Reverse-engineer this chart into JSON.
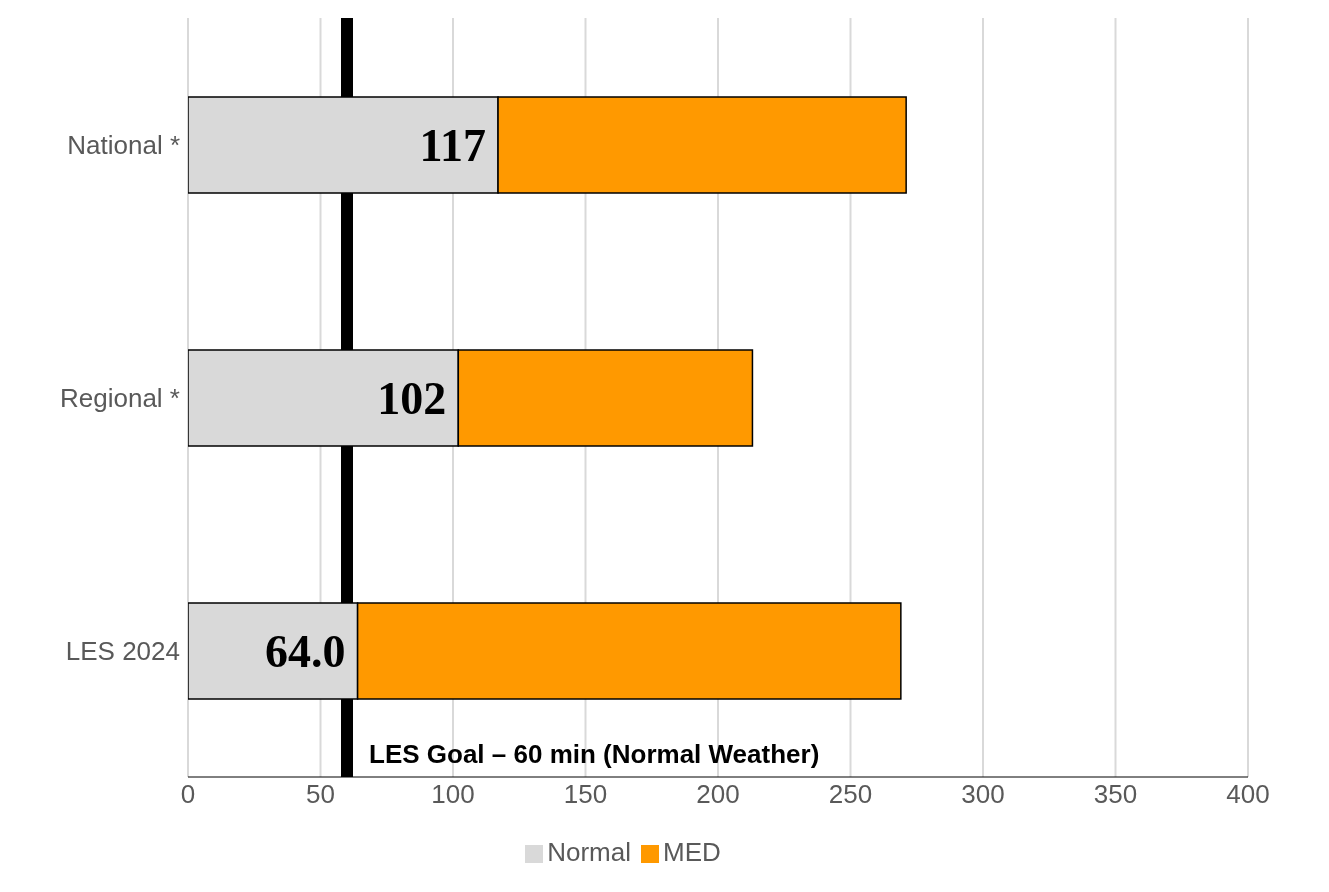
{
  "chart_data": {
    "type": "bar",
    "orientation": "horizontal",
    "stacked": true,
    "categories": [
      "National *",
      "Regional *",
      "LES 2024"
    ],
    "series": [
      {
        "name": "Normal",
        "color": "#d9d9d9",
        "values": [
          117,
          102,
          64.0
        ],
        "value_labels": [
          "117",
          "102",
          "64.0"
        ]
      },
      {
        "name": "MED",
        "color": "#ff9900",
        "values": [
          154,
          111,
          205
        ]
      }
    ],
    "xlim": [
      0,
      400
    ],
    "xticks": [
      0,
      50,
      100,
      150,
      200,
      250,
      300,
      350,
      400
    ],
    "grid": "x",
    "legend": "bottom",
    "ref_lines": [
      {
        "axis": "x",
        "value": 60,
        "label": "LES Goal – 60 min (Normal Weather)",
        "color": "#000000"
      }
    ]
  }
}
